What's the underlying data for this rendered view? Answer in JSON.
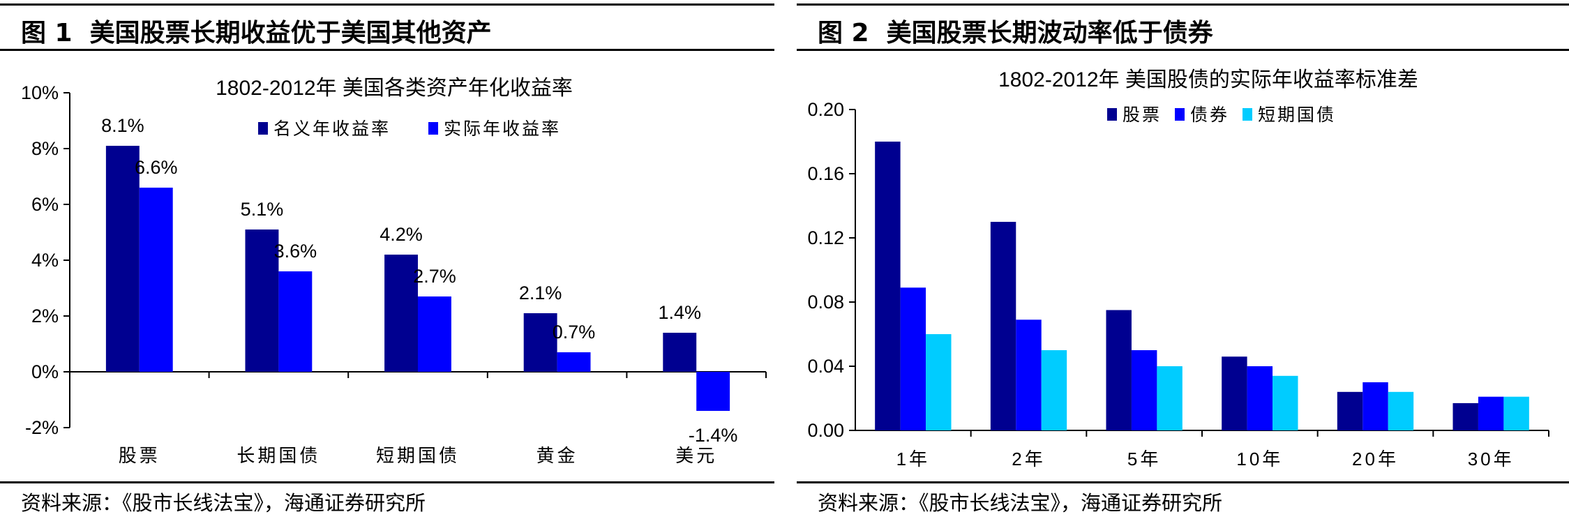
{
  "figures": [
    {
      "figure_label": "图 1",
      "figure_title": "美国股票长期收益优于美国其他资产",
      "source": "资料来源：《股市长线法宝》，海通证券研究所"
    },
    {
      "figure_label": "图 2",
      "figure_title": "美国股票长期波动率低于债券",
      "source": "资料来源：《股市长线法宝》，海通证券研究所"
    }
  ],
  "chart_data": [
    {
      "type": "bar",
      "title": "1802-2012年 美国各类资产年化收益率",
      "categories": [
        "股票",
        "长期国债",
        "短期国债",
        "黄金",
        "美元"
      ],
      "series": [
        {
          "name": "名义年收益率",
          "values": [
            8.1,
            5.1,
            4.2,
            2.1,
            1.4
          ],
          "color": "#000090",
          "labels": [
            "8.1%",
            "5.1%",
            "4.2%",
            "2.1%",
            "1.4%"
          ]
        },
        {
          "name": "实际年收益率",
          "values": [
            6.6,
            3.6,
            2.7,
            0.7,
            -1.4
          ],
          "color": "#0000ff",
          "labels": [
            "6.6%",
            "3.6%",
            "2.7%",
            "0.7%",
            "-1.4%"
          ]
        }
      ],
      "ylim": [
        -2,
        10
      ],
      "yticks": [
        -2,
        0,
        2,
        4,
        6,
        8,
        10
      ],
      "ytick_labels": [
        "-2%",
        "0%",
        "2%",
        "4%",
        "6%",
        "8%",
        "10%"
      ],
      "legend_position": "top-center",
      "grid": false
    },
    {
      "type": "bar",
      "title": "1802-2012年 美国股债的实际年收益率标准差",
      "categories": [
        "1年",
        "2年",
        "5年",
        "10年",
        "20年",
        "30年"
      ],
      "series": [
        {
          "name": "股票",
          "values": [
            0.18,
            0.13,
            0.075,
            0.046,
            0.024,
            0.017
          ],
          "color": "#000090"
        },
        {
          "name": "债券",
          "values": [
            0.089,
            0.069,
            0.05,
            0.04,
            0.03,
            0.021
          ],
          "color": "#0000ff"
        },
        {
          "name": "短期国债",
          "values": [
            0.06,
            0.05,
            0.04,
            0.034,
            0.024,
            0.021
          ],
          "color": "#00ccff"
        }
      ],
      "ylim": [
        0,
        0.2
      ],
      "yticks": [
        0,
        0.04,
        0.08,
        0.12,
        0.16,
        0.2
      ],
      "ytick_labels": [
        "0.00",
        "0.04",
        "0.08",
        "0.12",
        "0.16",
        "0.20"
      ],
      "legend_position": "top-center",
      "grid": false
    }
  ]
}
